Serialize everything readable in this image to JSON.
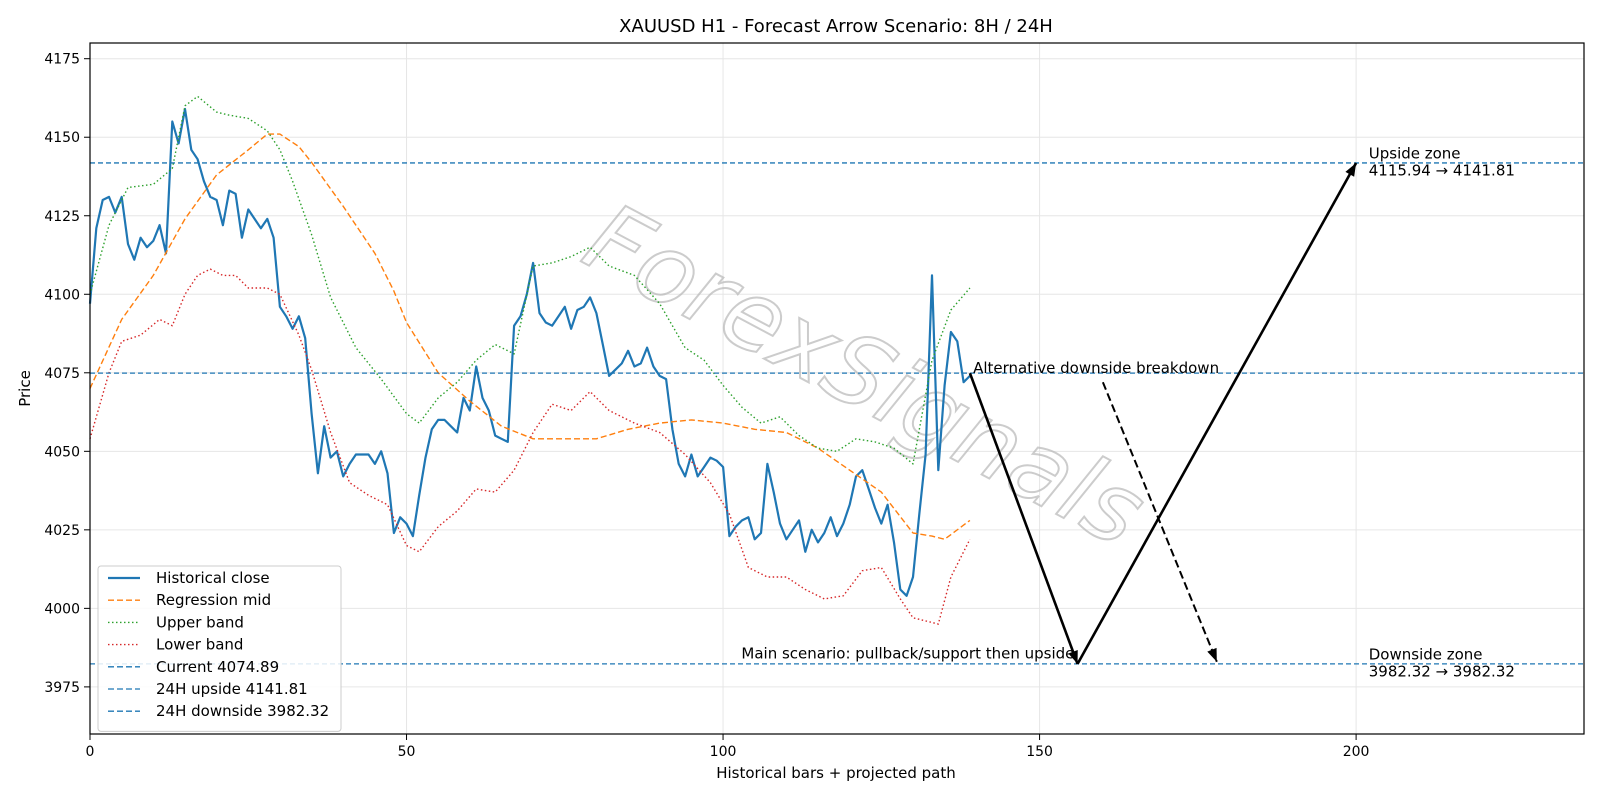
{
  "chart_data": {
    "type": "line",
    "title": "XAUUSD H1 - Forecast Arrow Scenario: 8H / 24H",
    "xlabel": "Historical bars + projected path",
    "ylabel": "Price",
    "xlim": [
      0,
      236
    ],
    "ylim": [
      3960,
      4180
    ],
    "xticks": [
      0,
      50,
      100,
      150,
      200
    ],
    "yticks": [
      3975,
      4000,
      4025,
      4050,
      4075,
      4100,
      4125,
      4150,
      4175
    ],
    "grid": true,
    "legend_position": "lower-left",
    "watermark": "ForexSignals",
    "series": [
      {
        "name": "Historical close",
        "color": "#1f77b4",
        "style": "solid",
        "x": [
          0,
          1,
          2,
          3,
          4,
          5,
          6,
          7,
          8,
          9,
          10,
          11,
          12,
          13,
          14,
          15,
          16,
          17,
          18,
          19,
          20,
          21,
          22,
          23,
          24,
          25,
          26,
          27,
          28,
          29,
          30,
          31,
          32,
          33,
          34,
          35,
          36,
          37,
          38,
          39,
          40,
          41,
          42,
          43,
          44,
          45,
          46,
          47,
          48,
          49,
          50,
          51,
          52,
          53,
          54,
          55,
          56,
          57,
          58,
          59,
          60,
          61,
          62,
          63,
          64,
          65,
          66,
          67,
          68,
          69,
          70,
          71,
          72,
          73,
          74,
          75,
          76,
          77,
          78,
          79,
          80,
          81,
          82,
          83,
          84,
          85,
          86,
          87,
          88,
          89,
          90,
          91,
          92,
          93,
          94,
          95,
          96,
          97,
          98,
          99,
          100,
          101,
          102,
          103,
          104,
          105,
          106,
          107,
          108,
          109,
          110,
          111,
          112,
          113,
          114,
          115,
          116,
          117,
          118,
          119,
          120,
          121,
          122,
          123,
          124,
          125,
          126,
          127,
          128,
          129,
          130,
          131,
          132,
          133,
          134,
          135,
          136,
          137,
          138,
          139
        ],
        "y": [
          4097,
          4121,
          4130,
          4131,
          4126,
          4131,
          4116,
          4111,
          4118,
          4115,
          4117,
          4122,
          4113,
          4155,
          4148,
          4159,
          4146,
          4143,
          4136,
          4131,
          4130,
          4122,
          4133,
          4132,
          4118,
          4127,
          4124,
          4121,
          4124,
          4118,
          4096,
          4093,
          4089,
          4093,
          4086,
          4062,
          4043,
          4058,
          4048,
          4050,
          4042,
          4046,
          4049,
          4049,
          4049,
          4046,
          4050,
          4043,
          4024,
          4029,
          4027,
          4023,
          4036,
          4048,
          4057,
          4060,
          4060,
          4058,
          4056,
          4067,
          4063,
          4077,
          4067,
          4063,
          4055,
          4054,
          4053,
          4090,
          4093,
          4100,
          4110,
          4094,
          4091,
          4090,
          4093,
          4096,
          4089,
          4095,
          4096,
          4099,
          4094,
          4084,
          4074,
          4076,
          4078,
          4082,
          4077,
          4078,
          4083,
          4077,
          4074,
          4073,
          4057,
          4046,
          4042,
          4049,
          4042,
          4045,
          4048,
          4047,
          4045,
          4023,
          4026,
          4028,
          4029,
          4022,
          4024,
          4046,
          4037,
          4027,
          4022,
          4025,
          4028,
          4018,
          4025,
          4021,
          4024,
          4029,
          4023,
          4027,
          4033,
          4042,
          4044,
          4038,
          4032,
          4027,
          4033,
          4021,
          4006,
          4004,
          4010,
          4030,
          4049,
          4106,
          4044,
          4071,
          4088,
          4085,
          4072,
          4074
        ]
      },
      {
        "name": "Regression mid",
        "color": "#ff7f0e",
        "style": "dashed",
        "x": [
          0,
          5,
          10,
          15,
          20,
          25,
          28,
          30,
          33,
          35,
          40,
          45,
          48,
          50,
          55,
          60,
          65,
          70,
          75,
          80,
          85,
          90,
          95,
          100,
          105,
          110,
          115,
          120,
          125,
          130,
          133,
          135,
          139
        ],
        "y": [
          4070,
          4092,
          4106,
          4124,
          4138,
          4146,
          4151,
          4151,
          4147,
          4142,
          4128,
          4113,
          4101,
          4091,
          4075,
          4066,
          4058,
          4054,
          4054,
          4054,
          4057,
          4059,
          4060,
          4059,
          4057,
          4056,
          4051,
          4044,
          4037,
          4024,
          4023,
          4022,
          4028
        ]
      },
      {
        "name": "Upper band",
        "color": "#2ca02c",
        "style": "dotted",
        "x": [
          0,
          3,
          6,
          10,
          13,
          15,
          17,
          20,
          22,
          25,
          28,
          30,
          32,
          35,
          38,
          42,
          46,
          50,
          52,
          55,
          58,
          61,
          64,
          67,
          70,
          73,
          76,
          79,
          82,
          86,
          90,
          94,
          97,
          100,
          103,
          106,
          109,
          112,
          115,
          118,
          121,
          124,
          127,
          130,
          133,
          136,
          139
        ],
        "y": [
          4100,
          4122,
          4134,
          4135,
          4140,
          4160,
          4163,
          4158,
          4157,
          4156,
          4152,
          4146,
          4136,
          4119,
          4099,
          4083,
          4073,
          4062,
          4059,
          4067,
          4072,
          4079,
          4084,
          4081,
          4109,
          4110,
          4112,
          4115,
          4109,
          4106,
          4097,
          4083,
          4079,
          4071,
          4064,
          4059,
          4061,
          4055,
          4051,
          4050,
          4054,
          4053,
          4051,
          4046,
          4079,
          4095,
          4102
        ]
      },
      {
        "name": "Lower band",
        "color": "#d62728",
        "style": "dotted",
        "x": [
          0,
          3,
          5,
          8,
          11,
          13,
          15,
          17,
          19,
          21,
          23,
          25,
          28,
          30,
          33,
          35,
          38,
          41,
          44,
          47,
          50,
          52,
          55,
          58,
          61,
          64,
          67,
          70,
          73,
          76,
          79,
          82,
          86,
          90,
          94,
          98,
          101,
          104,
          107,
          110,
          113,
          116,
          119,
          122,
          125,
          128,
          130,
          132,
          134,
          136,
          139
        ],
        "y": [
          4054,
          4075,
          4085,
          4087,
          4092,
          4090,
          4100,
          4106,
          4108,
          4106,
          4106,
          4102,
          4102,
          4100,
          4087,
          4076,
          4056,
          4040,
          4036,
          4033,
          4020,
          4018,
          4026,
          4031,
          4038,
          4037,
          4044,
          4056,
          4065,
          4063,
          4069,
          4063,
          4059,
          4056,
          4049,
          4040,
          4030,
          4013,
          4010,
          4010,
          4006,
          4003,
          4004,
          4012,
          4013,
          4003,
          3997,
          3996,
          3995,
          4010,
          4022
        ]
      }
    ],
    "reference_lines": [
      {
        "name": "Current 4074.89",
        "y": 4074.89,
        "color": "#1f77b4",
        "style": "dashed"
      },
      {
        "name": "24H upside 4141.81",
        "y": 4141.81,
        "color": "#1f77b4",
        "style": "dashed"
      },
      {
        "name": "24H downside 3982.32",
        "y": 3982.32,
        "color": "#1f77b4",
        "style": "dashed"
      }
    ],
    "arrows": [
      {
        "from": [
          139,
          4074.89
        ],
        "to": [
          156,
          3982.32
        ],
        "style": "solid"
      },
      {
        "from": [
          156,
          3982.32
        ],
        "to": [
          200,
          4141.81
        ],
        "style": "solid"
      },
      {
        "from": [
          160,
          4072
        ],
        "to": [
          178,
          3983
        ],
        "style": "dashed"
      }
    ],
    "annotations": [
      {
        "text": "Alternative downside breakdown",
        "x": 139.5,
        "y": 4075,
        "anchor": "start"
      },
      {
        "text": "Main scenario: pullback/support then upside",
        "x": 155.5,
        "y": 3984,
        "anchor": "end"
      },
      {
        "lines": [
          "Upside zone",
          "4115.94 → 4141.81"
        ],
        "x": 202,
        "y": 4142
      },
      {
        "lines": [
          "Downside zone",
          "3982.32 → 3982.32"
        ],
        "x": 202,
        "y": 3982.5
      }
    ]
  }
}
